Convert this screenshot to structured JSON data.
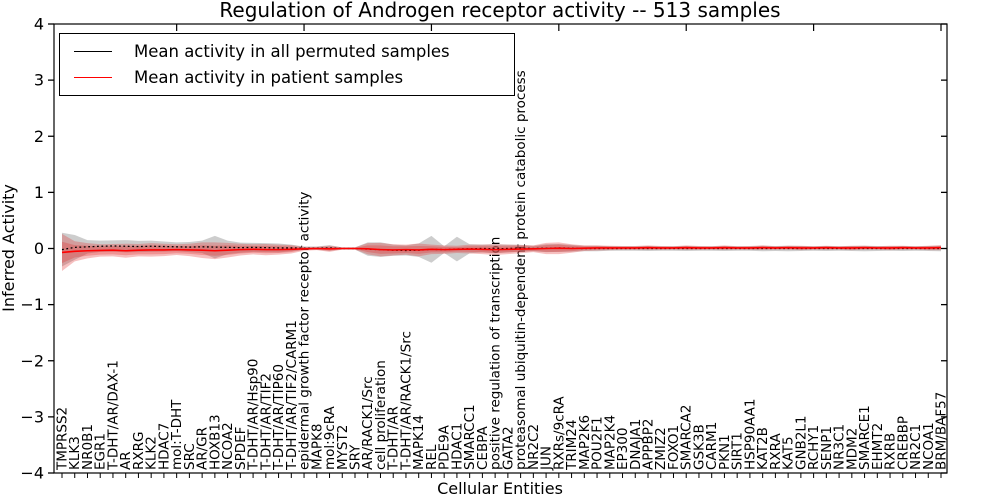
{
  "chart_data": {
    "type": "line",
    "title": "Regulation of Androgen receptor activity -- 513 samples",
    "xlabel": "Cellular Entities",
    "ylabel": "Inferred Activity",
    "ylim": [
      -4,
      4
    ],
    "yticks": [
      -4,
      -3,
      -2,
      -1,
      0,
      1,
      2,
      3,
      4
    ],
    "grid": false,
    "legend": {
      "position": "upper left",
      "entries": [
        {
          "label": "Mean activity in all permuted samples",
          "color": "#000000"
        },
        {
          "label": "Mean activity in patient samples",
          "color": "#ff0000"
        }
      ]
    },
    "colors": {
      "permuted_line": "#000000",
      "patient_line": "#ff0000",
      "permuted_band": "rgba(145,145,145,0.45)",
      "patient_band": "rgba(225,45,45,0.30)",
      "axis": "#000000"
    },
    "x_labels": [
      "TMPRSS2",
      "KLK3",
      "NR0B1",
      "EGR1",
      "T-DHT/AR/DAX-1",
      "AR",
      "RXRG",
      "KLK2",
      "HDAC7",
      "mol:T-DHT",
      "SRC",
      "AR/GR",
      "HOXB13",
      "NCOA2",
      "SPDEF",
      "T-DHT/AR/Hsp90",
      "T-DHT/AR/TIF2",
      "T-DHT/AR/TIP60",
      "T-DHT/AR/TIF2/CARM1",
      "epidermal growth factor receptor activity",
      "MAPK8",
      "mol:9cRA",
      "MYST2",
      "SRY",
      "AR/RACK1/Src",
      "cell proliferation",
      "T-DHT/AR",
      "T-DHT/AR/RACK1/Src",
      "MAPK14",
      "REL",
      "PDE9A",
      "HDAC1",
      "SMARCC1",
      "CEBPA",
      "positive regulation of transcription",
      "GATA2",
      "proteasomal ubiquitin-dependent protein catabolic process",
      "NR2C2",
      "JUN",
      "RXRs/9cRA",
      "TRIM24",
      "MAP2K6",
      "POU2F1",
      "MAP2K4",
      "EP300",
      "DNAJA1",
      "APPBP2",
      "ZMIZ2",
      "FOXO1",
      "SMARCA2",
      "GSK3B",
      "CARM1",
      "PKN1",
      "SIRT1",
      "HSP90AA1",
      "KAT2B",
      "RXRA",
      "KAT5",
      "GNB2L1",
      "RCHY1",
      "SENP1",
      "NR3C1",
      "MDM2",
      "SMARCE1",
      "EHMT2",
      "RXRB",
      "CREBBP",
      "NR2C1",
      "NCOA1",
      "BRM/BAF57"
    ],
    "top_major_tick_indices": [
      9,
      19,
      29,
      39,
      49,
      59,
      69
    ],
    "series": [
      {
        "name": "Mean activity in all permuted samples",
        "style": "dotted",
        "mean": [
          -0.02,
          0.02,
          0.03,
          0.04,
          0.045,
          0.04,
          0.035,
          0.04,
          0.035,
          0.03,
          0.025,
          0.03,
          0.025,
          0.02,
          0.015,
          0.02,
          0.015,
          0.01,
          0.01,
          0.005,
          0.005,
          0.01,
          0.0,
          0.0,
          -0.01,
          -0.02,
          -0.03,
          -0.035,
          -0.03,
          -0.015,
          -0.02,
          -0.01,
          -0.005,
          0.0,
          -0.005,
          0.0,
          0.005,
          0.0,
          0.005,
          0.01,
          0.005,
          0.0,
          0.0,
          0.0,
          0.0,
          0.0,
          0.0,
          0.0,
          0.0,
          0.0,
          0.0,
          0.0,
          0.0,
          0.0,
          0.0,
          0.0,
          0.0,
          0.0,
          0.0,
          0.0,
          0.0,
          0.0,
          0.0,
          0.0,
          0.0,
          0.0,
          0.0,
          0.0,
          0.0,
          0.0
        ],
        "band_halfwidth": [
          0.3,
          0.22,
          0.12,
          0.1,
          0.1,
          0.11,
          0.1,
          0.1,
          0.09,
          0.08,
          0.09,
          0.11,
          0.2,
          0.12,
          0.09,
          0.08,
          0.08,
          0.08,
          0.06,
          0.03,
          0.03,
          0.05,
          0.02,
          0.02,
          0.12,
          0.13,
          0.1,
          0.09,
          0.12,
          0.24,
          0.06,
          0.22,
          0.08,
          0.07,
          0.08,
          0.07,
          0.06,
          0.05,
          0.07,
          0.07,
          0.06,
          0.05,
          0.05,
          0.04,
          0.04,
          0.04,
          0.045,
          0.04,
          0.04,
          0.045,
          0.04,
          0.04,
          0.045,
          0.04,
          0.04,
          0.05,
          0.045,
          0.05,
          0.045,
          0.04,
          0.045,
          0.04,
          0.045,
          0.05,
          0.045,
          0.04,
          0.045,
          0.04,
          0.045,
          0.05
        ]
      },
      {
        "name": "Mean activity in patient samples",
        "style": "solid",
        "mean": [
          -0.07,
          -0.05,
          -0.04,
          -0.035,
          -0.03,
          -0.04,
          -0.03,
          -0.025,
          -0.025,
          -0.02,
          -0.025,
          -0.03,
          -0.04,
          -0.03,
          -0.02,
          -0.015,
          -0.02,
          -0.02,
          -0.015,
          -0.005,
          0.0,
          -0.005,
          0.0,
          0.0,
          -0.005,
          -0.02,
          -0.025,
          -0.02,
          -0.025,
          -0.015,
          -0.02,
          -0.015,
          -0.01,
          -0.015,
          -0.02,
          -0.015,
          -0.01,
          -0.005,
          0.0,
          0.005,
          0.0,
          0.005,
          0.01,
          0.01,
          0.01,
          0.01,
          0.015,
          0.01,
          0.01,
          0.015,
          0.01,
          0.01,
          0.015,
          0.01,
          0.01,
          0.015,
          0.01,
          0.015,
          0.01,
          0.01,
          0.015,
          0.01,
          0.01,
          0.015,
          0.01,
          0.01,
          0.015,
          0.01,
          0.01,
          0.015
        ],
        "band_inner_halfwidth": [
          0.19,
          0.11,
          0.09,
          0.075,
          0.075,
          0.08,
          0.075,
          0.08,
          0.075,
          0.065,
          0.07,
          0.085,
          0.09,
          0.085,
          0.07,
          0.06,
          0.065,
          0.06,
          0.05,
          0.02,
          0.015,
          0.035,
          0.01,
          0.01,
          0.06,
          0.075,
          0.065,
          0.06,
          0.07,
          0.055,
          0.05,
          0.04,
          0.05,
          0.055,
          0.06,
          0.055,
          0.05,
          0.04,
          0.06,
          0.065,
          0.05,
          0.03,
          0.03,
          0.025,
          0.02,
          0.02,
          0.025,
          0.02,
          0.02,
          0.025,
          0.02,
          0.02,
          0.025,
          0.02,
          0.02,
          0.025,
          0.02,
          0.02,
          0.025,
          0.02,
          0.02,
          0.02,
          0.025,
          0.02,
          0.02,
          0.025,
          0.02,
          0.02,
          0.025,
          0.03
        ],
        "band_outer_halfwidth": [
          0.33,
          0.18,
          0.135,
          0.11,
          0.11,
          0.125,
          0.11,
          0.12,
          0.11,
          0.095,
          0.11,
          0.14,
          0.15,
          0.13,
          0.105,
          0.09,
          0.1,
          0.09,
          0.075,
          0.035,
          0.03,
          0.055,
          0.02,
          0.02,
          0.1,
          0.12,
          0.1,
          0.09,
          0.115,
          0.085,
          0.075,
          0.065,
          0.08,
          0.085,
          0.095,
          0.085,
          0.075,
          0.06,
          0.1,
          0.105,
          0.075,
          0.05,
          0.045,
          0.04,
          0.035,
          0.035,
          0.04,
          0.035,
          0.03,
          0.04,
          0.035,
          0.03,
          0.04,
          0.03,
          0.035,
          0.04,
          0.03,
          0.035,
          0.04,
          0.03,
          0.035,
          0.03,
          0.04,
          0.035,
          0.03,
          0.04,
          0.035,
          0.03,
          0.04,
          0.045
        ]
      }
    ]
  }
}
